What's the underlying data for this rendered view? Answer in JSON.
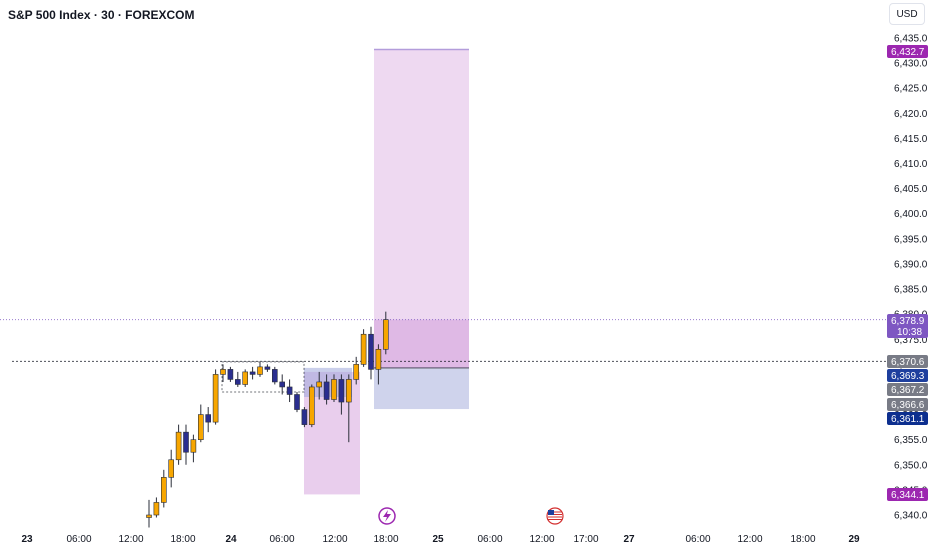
{
  "title": "S&P 500 Index · 30 · FOREXCOM",
  "currency": "USD",
  "chart_data": {
    "type": "candlestick",
    "ylim": [
      6338,
      6437
    ],
    "y_ticks": [
      "6,340.0",
      "6,345.0",
      "6,350.0",
      "6,355.0",
      "6,360.0",
      "6,365.0",
      "6,370.0",
      "6,375.0",
      "6,380.0",
      "6,385.0",
      "6,390.0",
      "6,395.0",
      "6,400.0",
      "6,405.0",
      "6,410.0",
      "6,415.0",
      "6,420.0",
      "6,425.0",
      "6,430.0",
      "6,435.0"
    ],
    "x_ticks": [
      {
        "label": "23",
        "major": true
      },
      {
        "label": "06:00",
        "major": false
      },
      {
        "label": "12:00",
        "major": false
      },
      {
        "label": "18:00",
        "major": false
      },
      {
        "label": "24",
        "major": true
      },
      {
        "label": "06:00",
        "major": false
      },
      {
        "label": "12:00",
        "major": false
      },
      {
        "label": "18:00",
        "major": false
      },
      {
        "label": "25",
        "major": true
      },
      {
        "label": "06:00",
        "major": false
      },
      {
        "label": "12:00",
        "major": false
      },
      {
        "label": "17:00",
        "major": false
      },
      {
        "label": "27",
        "major": true
      },
      {
        "label": "06:00",
        "major": false
      },
      {
        "label": "12:00",
        "major": false
      },
      {
        "label": "18:00",
        "major": false
      },
      {
        "label": "29",
        "major": true
      }
    ],
    "price_badges": [
      {
        "label": "6,432.7",
        "value": 6432.7,
        "color": "#9c27b0"
      },
      {
        "label": "6,378.9",
        "value": 6378.9,
        "color": "#7e57c2",
        "sub": "10:38"
      },
      {
        "label": "6,370.6",
        "value": 6370.6,
        "color": "#787b86"
      },
      {
        "label": "6,369.3",
        "value": 6369.3,
        "color": "#1e3f9e"
      },
      {
        "label": "6,367.2",
        "value": 6367.2,
        "color": "#787b86"
      },
      {
        "label": "6,366.6",
        "value": 6366.6,
        "color": "#787b86"
      },
      {
        "label": "6,361.1",
        "value": 6361.1,
        "color": "#0d2f8f"
      },
      {
        "label": "6,344.1",
        "value": 6344.1,
        "color": "#9c27b0"
      }
    ],
    "last_price": 6378.9,
    "dotted_level": 6370.6,
    "candles": [
      [
        6339.5,
        6343.0,
        6337.5,
        6340.0
      ],
      [
        6340.0,
        6343.5,
        6339.5,
        6342.5
      ],
      [
        6342.5,
        6349.0,
        6341.5,
        6347.5
      ],
      [
        6347.5,
        6353.0,
        6345.5,
        6351.0
      ],
      [
        6351.0,
        6358.0,
        6350.0,
        6356.5
      ],
      [
        6356.5,
        6358.0,
        6350.0,
        6352.5
      ],
      [
        6352.5,
        6356.0,
        6350.5,
        6355.0
      ],
      [
        6355.0,
        6362.0,
        6354.5,
        6360.0
      ],
      [
        6360.0,
        6361.5,
        6356.5,
        6358.5
      ],
      [
        6358.5,
        6369.0,
        6358.0,
        6368.0
      ],
      [
        6368.0,
        6370.0,
        6366.5,
        6369.0
      ],
      [
        6369.0,
        6369.5,
        6366.5,
        6367.0
      ],
      [
        6367.0,
        6368.5,
        6365.5,
        6366.0
      ],
      [
        6366.0,
        6369.0,
        6365.5,
        6368.5
      ],
      [
        6368.5,
        6369.5,
        6367.0,
        6368.0
      ],
      [
        6368.0,
        6370.5,
        6367.5,
        6369.5
      ],
      [
        6369.5,
        6370.0,
        6368.5,
        6369.0
      ],
      [
        6369.0,
        6369.5,
        6366.0,
        6366.5
      ],
      [
        6366.5,
        6368.0,
        6364.0,
        6365.5
      ],
      [
        6365.5,
        6367.0,
        6362.5,
        6364.0
      ],
      [
        6364.0,
        6364.5,
        6360.5,
        6361.0
      ],
      [
        6361.0,
        6361.5,
        6357.5,
        6358.0
      ],
      [
        6358.0,
        6366.0,
        6357.5,
        6365.5
      ],
      [
        6365.5,
        6368.5,
        6363.0,
        6366.5
      ],
      [
        6366.5,
        6368.0,
        6362.0,
        6363.0
      ],
      [
        6363.0,
        6368.0,
        6362.5,
        6367.0
      ],
      [
        6367.0,
        6368.0,
        6360.0,
        6362.5
      ],
      [
        6362.5,
        6368.0,
        6354.5,
        6367.0
      ],
      [
        6367.0,
        6371.5,
        6366.0,
        6370.0
      ],
      [
        6370.0,
        6377.0,
        6369.5,
        6376.0
      ],
      [
        6376.0,
        6377.5,
        6367.0,
        6369.0
      ],
      [
        6369.0,
        6374.0,
        6366.0,
        6373.0
      ],
      [
        6373.0,
        6380.5,
        6372.0,
        6378.9
      ]
    ],
    "position": {
      "entry": 6369.3,
      "target": 6432.7,
      "stop": 6361.1
    },
    "zones": [
      {
        "top": 6368.5,
        "bottom": 6344.1,
        "color": "#ce93d8"
      },
      {
        "top": 6369.3,
        "bottom": 6363.5,
        "color": "#9fa8da"
      }
    ]
  }
}
